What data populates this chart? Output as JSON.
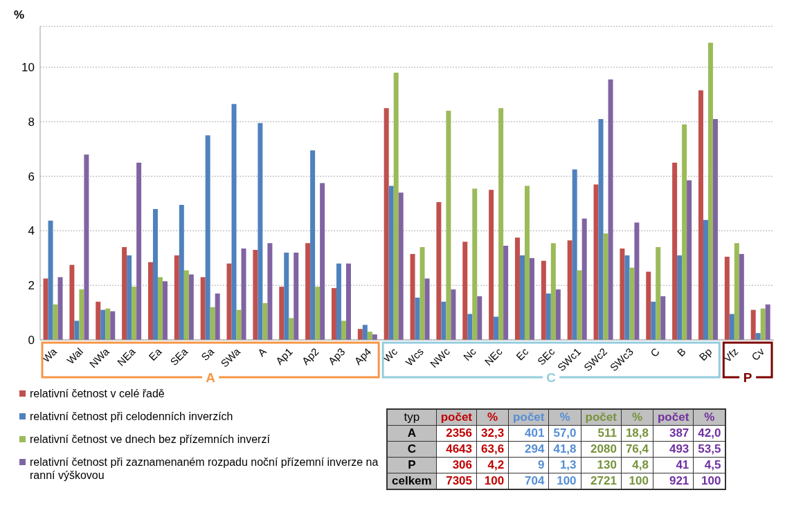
{
  "chart_data": [
    {
      "type": "bar",
      "ylabel": "%",
      "categories": [
        "Wa",
        "Wal",
        "NWa",
        "NEa",
        "Ea",
        "SEa",
        "Sa",
        "SWa",
        "A",
        "Ap1",
        "Ap2",
        "Ap3",
        "Ap4",
        "Wc",
        "Wcs",
        "NWc",
        "Nc",
        "NEc",
        "Ec",
        "SEc",
        "SWc1",
        "SWc2",
        "SWc3",
        "C",
        "B",
        "Bp",
        "Vfz",
        "Cv"
      ],
      "series": [
        {
          "name": "relativní četnost v celé řadě",
          "color": "#c0504d",
          "values": [
            2.25,
            2.75,
            1.4,
            3.4,
            2.85,
            3.1,
            2.3,
            2.8,
            3.3,
            1.95,
            3.55,
            1.9,
            0.4,
            8.5,
            3.15,
            5.05,
            3.6,
            5.5,
            3.75,
            2.9,
            3.65,
            5.7,
            3.35,
            2.5,
            6.5,
            9.15,
            3.05,
            1.1
          ]
        },
        {
          "name": "relativní četnost při celodenních inverzích",
          "color": "#4f81bd",
          "values": [
            4.37,
            0.7,
            1.1,
            3.1,
            4.8,
            4.95,
            7.5,
            8.65,
            7.95,
            3.2,
            6.95,
            2.8,
            0.55,
            5.65,
            1.55,
            1.4,
            0.95,
            0.85,
            3.1,
            1.7,
            6.25,
            8.1,
            3.1,
            1.4,
            3.1,
            4.4,
            0.95,
            0.25
          ]
        },
        {
          "name": "relativní četnost ve dnech bez přízemních inverzí",
          "color": "#9bbb59",
          "values": [
            1.3,
            1.85,
            1.15,
            1.95,
            2.3,
            2.55,
            1.2,
            1.1,
            1.35,
            0.8,
            1.95,
            0.7,
            0.3,
            9.8,
            3.4,
            8.4,
            5.55,
            8.5,
            5.65,
            3.55,
            2.55,
            3.9,
            2.65,
            3.4,
            7.9,
            10.9,
            3.55,
            1.15
          ]
        },
        {
          "name": "relativní četnost při zaznamenaném rozpadu noční přízemní inverze na ranní výškovou",
          "color": "#8064a2",
          "values": [
            2.3,
            6.8,
            1.05,
            6.5,
            2.15,
            2.4,
            1.7,
            3.35,
            3.55,
            3.2,
            5.75,
            2.8,
            0.2,
            5.4,
            2.25,
            1.85,
            1.6,
            3.45,
            3.0,
            1.85,
            4.45,
            9.55,
            4.3,
            1.6,
            5.85,
            8.1,
            3.15,
            1.3
          ]
        }
      ],
      "ylim": [
        0,
        11.5
      ],
      "yticks": [
        0,
        2,
        4,
        6,
        8,
        10
      ],
      "grid": "y",
      "legend": "bottom left",
      "annotations": [
        "A",
        "C",
        "P"
      ]
    },
    {
      "type": "other",
      "categories": [
        "typ",
        "počet",
        "%",
        "počet",
        "%",
        "počet",
        "%",
        "počet",
        "%"
      ],
      "y_categories": [
        "A",
        "C",
        "P",
        "celkem"
      ],
      "cell_labels": [
        [
          "2356",
          "32,3",
          "401",
          "57,0",
          "511",
          "18,8",
          "387",
          "42,0"
        ],
        [
          "4643",
          "63,6",
          "294",
          "41,8",
          "2080",
          "76,4",
          "493",
          "53,5"
        ],
        [
          "306",
          "4,2",
          "9",
          "1,3",
          "130",
          "4,8",
          "41",
          "4,5"
        ],
        [
          "7305",
          "100",
          "704",
          "100",
          "2721",
          "100",
          "921",
          "100"
        ]
      ]
    }
  ]
}
